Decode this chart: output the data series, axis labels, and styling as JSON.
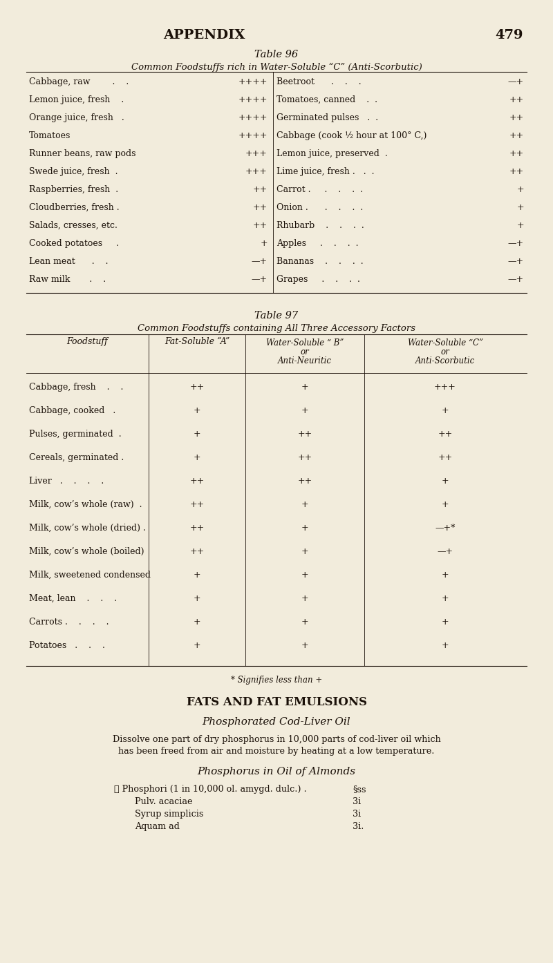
{
  "bg_color": "#f2ecdc",
  "text_color": "#1a1008",
  "page_header": "APPENDIX",
  "page_number": "479",
  "table96_title": "Table 96",
  "table96_subtitle": "Common Foodstuffs rich in Water-Soluble “C” (Anti-Scorbutic)",
  "table96_left": [
    [
      "Cabbage, raw        .    .",
      "++++"
    ],
    [
      "Lemon juice, fresh    .",
      "++++"
    ],
    [
      "Orange juice, fresh   .",
      "++++"
    ],
    [
      "Tomatoes",
      "++++"
    ],
    [
      "Runner beans, raw pods",
      "+++"
    ],
    [
      "Swede juice, fresh  .",
      "+++"
    ],
    [
      "Raspberries, fresh  .",
      "++"
    ],
    [
      "Cloudberries, fresh .",
      "++"
    ],
    [
      "Salads, cresses, etc.",
      "++"
    ],
    [
      "Cooked potatoes     .",
      "+"
    ],
    [
      "Lean meat      .    .",
      "—+"
    ],
    [
      "Raw milk       .    .",
      "—+"
    ]
  ],
  "table96_right": [
    [
      "Beetroot      .    .    .",
      "—+"
    ],
    [
      "Tomatoes, canned    .  .",
      "++"
    ],
    [
      "Germinated pulses   .  .",
      "++"
    ],
    [
      "Cabbage (cook ½ hour at 100° C,)",
      "++"
    ],
    [
      "Lemon juice, preserved  .",
      "++"
    ],
    [
      "Lime juice, fresh .   .  .",
      "++"
    ],
    [
      "Carrot .     .    .    .  .",
      "+"
    ],
    [
      "Onion .      .    .    .  .",
      "+"
    ],
    [
      "Rhubarb    .    .    .  .",
      "+"
    ],
    [
      "Apples     .    .    .  .",
      "—+"
    ],
    [
      "Bananas    .    .    .  .",
      "—+"
    ],
    [
      "Grapes     .    .    .  .",
      "—+"
    ]
  ],
  "table97_title": "Table 97",
  "table97_subtitle": "Common Foodstuffs containing All Three Accessory Factors",
  "table97_col0_header": "Foodstuff",
  "table97_col1_header": "Fat-Soluble “A”",
  "table97_col2_header": "Water-Soluble “ B”\nor\nAnti-Neuritic",
  "table97_col3_header": "Water-Soluble “C”\nor\nAnti-Scorbutic",
  "table97_rows": [
    [
      "Cabbage, fresh    .    .",
      "++",
      "+",
      "+++"
    ],
    [
      "Cabbage, cooked   .",
      "+",
      "+",
      "+"
    ],
    [
      "Pulses, germinated  .",
      "+",
      "++",
      "++"
    ],
    [
      "Cereals, germinated .",
      "+",
      "++",
      "++"
    ],
    [
      "Liver   .    .    .    .",
      "++",
      "++",
      "+"
    ],
    [
      "Milk, cow’s whole (raw)  .",
      "++",
      "+",
      "+"
    ],
    [
      "Milk, cow’s whole (dried) .",
      "++",
      "+",
      "—+*"
    ],
    [
      "Milk, cow’s whole (boiled)",
      "++",
      "+",
      "—+"
    ],
    [
      "Milk, sweetened condensed",
      "+",
      "+",
      "+"
    ],
    [
      "Meat, lean    .    .    .",
      "+",
      "+",
      "+"
    ],
    [
      "Carrots .    .    .    .",
      "+",
      "+",
      "+"
    ],
    [
      "Potatoes   .    .    .",
      "+",
      "+",
      "+"
    ]
  ],
  "table97_footnote": "* Signifies less than +",
  "section_header": "FATS AND FAT EMULSIONS",
  "subsection1": "Phosphorated Cod-Liver Oil",
  "body1_line1": "Dissolve one part of dry phosphorus in 10,000 parts of cod-liver oil which",
  "body1_line2": "has been freed from air and moisture by heating at a low temperature.",
  "subsection2": "Phosphorus in Oil of Almonds",
  "recipe_label1": "℞ Phosphori (1 in 10,000 ol. amygd. dulc.) .",
  "recipe_val1": "§ss",
  "recipe_label2": "Pulv. acaciae",
  "recipe_val2": "3i",
  "recipe_label3": "Syrup simplicis",
  "recipe_val3": "3i",
  "recipe_label4": "Aquam ad",
  "recipe_val4": "3i."
}
